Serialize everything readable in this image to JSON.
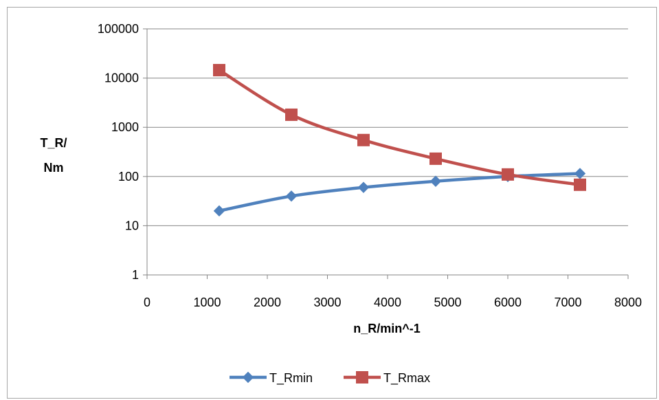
{
  "chart_data": {
    "type": "scatter",
    "title": "",
    "xlabel": "n_R/min^-1",
    "ylabel_lines": [
      "T_R/",
      "Nm"
    ],
    "xlim": [
      0,
      8000
    ],
    "ylim": [
      1,
      100000
    ],
    "yscale": "log",
    "x_ticks": [
      0,
      1000,
      2000,
      3000,
      4000,
      5000,
      6000,
      7000,
      8000
    ],
    "y_ticks": [
      1,
      10,
      100,
      1000,
      10000,
      100000
    ],
    "grid": "horizontal",
    "legend_position": "bottom",
    "series": [
      {
        "name": "T_Rmin",
        "color": "#4f81bd",
        "marker": "diamond",
        "x": [
          1200,
          2400,
          3600,
          4800,
          6000,
          7200
        ],
        "y": [
          20,
          40,
          60,
          80,
          100,
          115
        ]
      },
      {
        "name": "T_Rmax",
        "color": "#c0504d",
        "marker": "square",
        "x": [
          1200,
          2400,
          3600,
          4800,
          6000,
          7200
        ],
        "y": [
          14500,
          1800,
          550,
          230,
          110,
          68
        ]
      }
    ]
  }
}
